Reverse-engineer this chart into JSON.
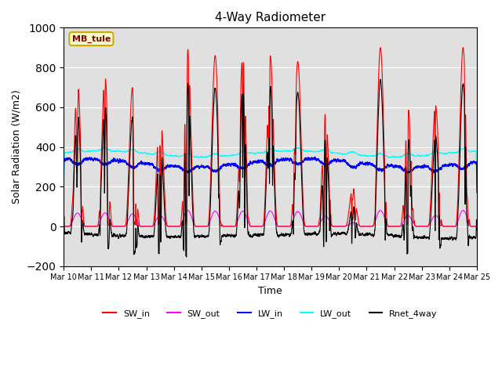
{
  "title": "4-Way Radiometer",
  "ylabel": "Solar Radiation (W/m2)",
  "xlabel": "Time",
  "ylim": [
    -200,
    1000
  ],
  "yticks": [
    -200,
    0,
    200,
    400,
    600,
    800,
    1000
  ],
  "x_labels": [
    "Mar 10",
    "Mar 11",
    "Mar 12",
    "Mar 13",
    "Mar 14",
    "Mar 15",
    "Mar 16",
    "Mar 17",
    "Mar 18",
    "Mar 19",
    "Mar 20",
    "Mar 21",
    "Mar 22",
    "Mar 23",
    "Mar 24",
    "Mar 25"
  ],
  "station_label": "MB_tule",
  "bg_color": "#e0e0e0",
  "sw_in_color": "#ff0000",
  "sw_out_color": "#ff00ff",
  "lw_in_color": "#0000ff",
  "lw_out_color": "#00ffff",
  "rnet_color": "#000000",
  "num_days": 15,
  "ppd": 1440,
  "day_sw_amplitudes": [
    750,
    760,
    700,
    620,
    900,
    860,
    860,
    860,
    830,
    580,
    200,
    900,
    600,
    610,
    900
  ],
  "lw_out_base": 365,
  "lw_in_base": 320,
  "rnet_night": -100
}
